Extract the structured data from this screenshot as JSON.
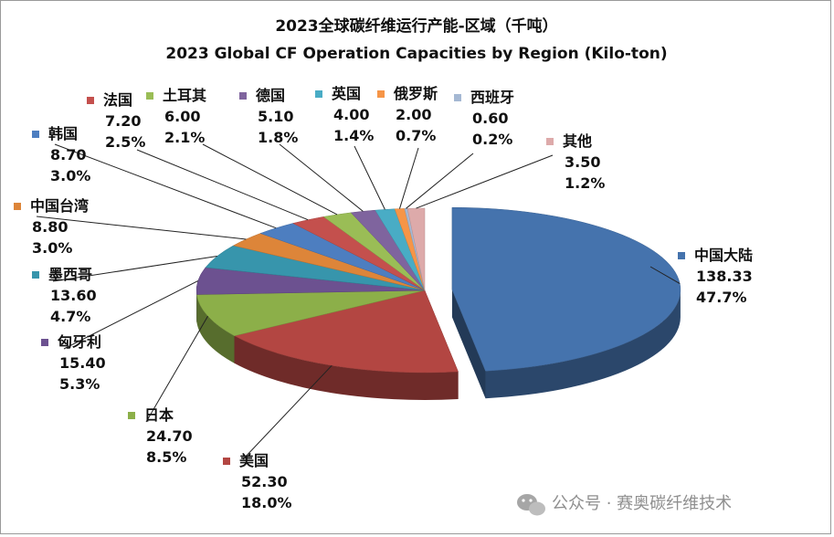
{
  "chart_data": {
    "type": "pie",
    "title": "2023全球碳纤维运行产能-区域（千吨）",
    "subtitle": "2023 Global CF Operation Capacities by Region (Kilo-ton)",
    "slices": [
      {
        "label": "中国大陆",
        "value": 138.33,
        "value_text": "138.33",
        "percent": "47.7%",
        "color": "#4573ad"
      },
      {
        "label": "美国",
        "value": 52.3,
        "value_text": "52.30",
        "percent": "18.0%",
        "color": "#b34642"
      },
      {
        "label": "日本",
        "value": 24.7,
        "value_text": "24.70",
        "percent": "8.5%",
        "color": "#8caf49"
      },
      {
        "label": "匈牙利",
        "value": 15.4,
        "value_text": "15.40",
        "percent": "5.3%",
        "color": "#6c5190"
      },
      {
        "label": "墨西哥",
        "value": 13.6,
        "value_text": "13.60",
        "percent": "4.7%",
        "color": "#3795ac"
      },
      {
        "label": "中国台湾",
        "value": 8.8,
        "value_text": "8.80",
        "percent": "3.0%",
        "color": "#dd8539"
      },
      {
        "label": "韩国",
        "value": 8.7,
        "value_text": "8.70",
        "percent": "3.0%",
        "color": "#4d7ec0"
      },
      {
        "label": "法国",
        "value": 7.2,
        "value_text": "7.20",
        "percent": "2.5%",
        "color": "#c4504d"
      },
      {
        "label": "土耳其",
        "value": 6.0,
        "value_text": "6.00",
        "percent": "2.1%",
        "color": "#9abd56"
      },
      {
        "label": "德国",
        "value": 5.1,
        "value_text": "5.10",
        "percent": "1.8%",
        "color": "#7f649e"
      },
      {
        "label": "英国",
        "value": 4.0,
        "value_text": "4.00",
        "percent": "1.4%",
        "color": "#49acc5"
      },
      {
        "label": "俄罗斯",
        "value": 2.0,
        "value_text": "2.00",
        "percent": "0.7%",
        "color": "#f69547"
      },
      {
        "label": "西班牙",
        "value": 0.6,
        "value_text": "0.60",
        "percent": "0.2%",
        "color": "#a5b8d3"
      },
      {
        "label": "其他",
        "value": 3.5,
        "value_text": "3.50",
        "percent": "1.2%",
        "color": "#ddaaaa"
      }
    ]
  },
  "watermark": {
    "text": "公众号 · 赛奥碳纤维技术",
    "icon": "wechat-icon"
  }
}
